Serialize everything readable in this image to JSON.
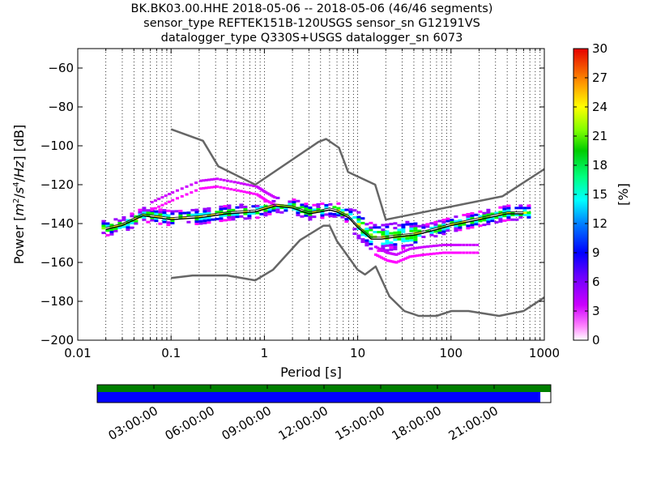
{
  "title_lines": [
    "BK.BK03.00.HHE   2018-05-06 -- 2018-05-06  (46/46 segments)",
    "sensor_type REFTEK151B-120USGS sensor_sn G12191VS",
    "datalogger_type Q330S+USGS datalogger_sn 6073"
  ],
  "chart_data": {
    "type": "heatmap",
    "title": "BK.BK03.00.HHE   2018-05-06 -- 2018-05-06  (46/46 segments)",
    "xlabel": "Period [s]",
    "ylabel": "Power [m²/s⁴/Hz] [dB]",
    "ylabel_parts": {
      "prefix": "Power [",
      "m": "m",
      "exp2": "2",
      "s": "s",
      "exp4": "4",
      "hz": "Hz",
      "suffix": "] [dB]"
    },
    "xscale": "log",
    "xlim": [
      0.01,
      1000
    ],
    "ylim": [
      -200,
      -50
    ],
    "x_tick_values": [
      0.01,
      0.1,
      1,
      10,
      100,
      1000
    ],
    "x_tick_labels": [
      "0.01",
      "0.1",
      "1",
      "10",
      "100",
      "1000"
    ],
    "y_tick_values": [
      -60,
      -80,
      -100,
      -120,
      -140,
      -160,
      -180,
      -200
    ],
    "y_tick_labels": [
      "−60",
      "−80",
      "−100",
      "−120",
      "−140",
      "−160",
      "−180",
      "−200"
    ],
    "grid": "vertical dotted at log period intervals",
    "colorbar": {
      "label": "[%]",
      "range": [
        0,
        30
      ],
      "ticks": [
        "0",
        "3",
        "6",
        "9",
        "12",
        "15",
        "18",
        "21",
        "24",
        "27",
        "30"
      ]
    },
    "noise_models": {
      "high": {
        "period": [
          0.1,
          0.22,
          0.32,
          0.8,
          3.8,
          4.6,
          6.3,
          7.9,
          15.4,
          20,
          354.8,
          1000
        ],
        "power": [
          -91.5,
          -97.4,
          -110.5,
          -120,
          -98,
          -96.5,
          -101,
          -113.5,
          -120,
          -138,
          -126,
          -112
        ]
      },
      "low": {
        "period": [
          0.1,
          0.17,
          0.4,
          0.8,
          1.24,
          2.4,
          4.3,
          5,
          6,
          10,
          12,
          15.6,
          21.9,
          31.6,
          45,
          70,
          101,
          154,
          328,
          600,
          1000
        ],
        "power": [
          -168,
          -166.7,
          -166.7,
          -169.2,
          -163.7,
          -148.6,
          -141.1,
          -141.1,
          -149,
          -163.8,
          -166.2,
          -162.1,
          -177.5,
          -185,
          -187.5,
          -187.5,
          -185,
          -185,
          -187.5,
          -185,
          -178
        ]
      }
    },
    "mean_curve": {
      "period": [
        0.02,
        0.03,
        0.05,
        0.1,
        0.2,
        0.4,
        0.8,
        1.3,
        2,
        3,
        4,
        5,
        6,
        8,
        10,
        14,
        18,
        25,
        40,
        60,
        100,
        200,
        400,
        600
      ],
      "power": [
        -142,
        -140,
        -135,
        -137,
        -136,
        -134,
        -133,
        -130,
        -131,
        -134,
        -133,
        -132,
        -133,
        -136,
        -141,
        -147,
        -147,
        -146,
        -145,
        -143,
        -140,
        -137,
        -134,
        -134
      ]
    },
    "mode_curve": {
      "period": [
        0.02,
        0.03,
        0.05,
        0.1,
        0.2,
        0.4,
        0.8,
        1.3,
        2,
        3,
        4,
        5,
        6,
        8,
        10,
        14,
        18,
        25,
        40,
        60,
        100,
        200,
        400,
        600
      ],
      "power": [
        -143,
        -141,
        -136,
        -138,
        -137,
        -135,
        -134,
        -131,
        -132,
        -135,
        -134,
        -133,
        -134,
        -137,
        -142,
        -148,
        -148,
        -147,
        -146,
        -144,
        -141,
        -138,
        -135,
        -135
      ]
    },
    "upper_outlier_band": {
      "period": [
        0.06,
        0.1,
        0.2,
        0.3,
        0.5,
        0.8,
        1.0,
        1.3
      ],
      "power": [
        -129,
        -124,
        -118,
        -117,
        -119,
        -121,
        -124,
        -127
      ]
    },
    "lower_outlier_band": {
      "period": [
        15,
        20,
        25,
        35,
        50,
        80,
        120,
        200
      ],
      "power": [
        -152,
        -155,
        -156,
        -153,
        -152,
        -151,
        -151,
        -151
      ]
    }
  },
  "timeline": {
    "labels": [
      "03:00:00",
      "06:00:00",
      "09:00:00",
      "12:00:00",
      "15:00:00",
      "18:00:00",
      "21:00:00"
    ],
    "data_coverage_fraction": 0.977,
    "colors": {
      "top_bar": "#007f00",
      "bottom_bar": "#0000ff"
    }
  }
}
